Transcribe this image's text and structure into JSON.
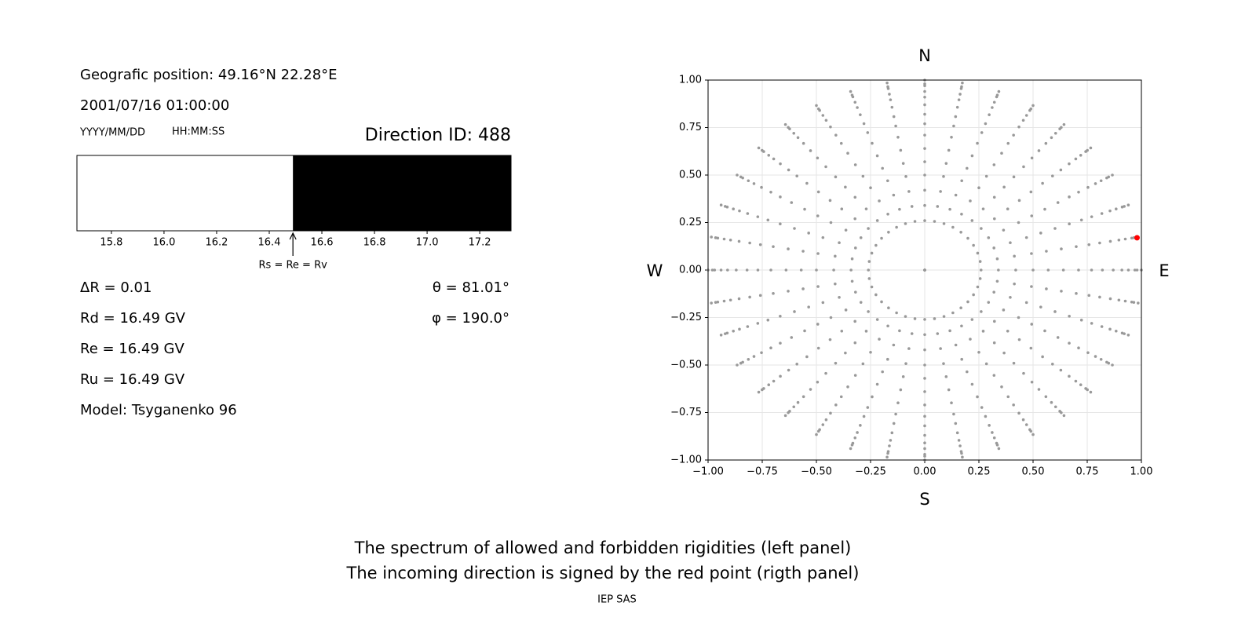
{
  "info": {
    "position": "Geografic position: 49.16°N 22.28°E",
    "datetime": "2001/07/16 01:00:00",
    "date_format": "YYYY/MM/DD",
    "time_format": "HH:MM:SS",
    "direction": "Direction ID: 488",
    "delta_r": "ΔR = 0.01",
    "theta": "θ = 81.01°",
    "phi": "φ = 190.0°",
    "rd": "Rd = 16.49 GV",
    "re": "Re = 16.49 GV",
    "ru": "Ru = 16.49 GV",
    "model": "Model: Tsyganenko 96"
  },
  "chart_data": [
    {
      "type": "spectrum",
      "xlim": [
        15.669,
        17.319
      ],
      "boundary": 16.49,
      "boundary_label": "Rs = Re = Rv",
      "allowed_color": "#ffffff",
      "forbidden_color": "#000000",
      "xticks": [
        15.8,
        {
          "value": 16,
          "label": "16.0"
        },
        16.2,
        16.4,
        16.6,
        16.8,
        {
          "value": 17,
          "label": "17.0"
        },
        17.2
      ]
    },
    {
      "type": "polar-scatter",
      "radii": [
        0,
        0.26,
        0.34,
        0.42,
        0.5,
        0.57,
        0.64,
        0.71,
        0.77,
        0.82,
        0.87,
        0.91,
        0.94,
        0.97,
        0.98,
        1.0
      ],
      "azimuths": [
        0,
        10,
        20,
        30,
        40,
        50,
        60,
        70,
        80,
        90,
        100,
        110,
        120,
        130,
        140,
        150,
        160,
        170,
        180,
        190,
        200,
        210,
        220,
        230,
        240,
        250,
        260,
        270,
        280,
        290,
        300,
        310,
        320,
        330,
        340,
        350
      ],
      "color": "#999999",
      "highlight": {
        "x": [
          0.98
        ],
        "y": [
          0.17
        ],
        "color": "#ff0000"
      },
      "xlim": [
        -1,
        1
      ],
      "ylim": [
        -1,
        1
      ],
      "xticks": [
        {
          "value": -1,
          "label": "−1.00"
        },
        {
          "value": -0.75,
          "label": "−0.75"
        },
        {
          "value": -0.5,
          "label": "−0.50"
        },
        {
          "value": -0.25,
          "label": "−0.25"
        },
        {
          "value": 0,
          "label": "0.00"
        },
        {
          "value": 0.25,
          "label": "0.25"
        },
        {
          "value": 0.5,
          "label": "0.50"
        },
        {
          "value": 0.75,
          "label": "0.75"
        },
        {
          "value": 1,
          "label": "1.00"
        }
      ],
      "yticks": [
        {
          "value": -1,
          "label": "−1.00"
        },
        {
          "value": -0.75,
          "label": "−0.75"
        },
        {
          "value": -0.5,
          "label": "−0.50"
        },
        {
          "value": -0.25,
          "label": "−0.25"
        },
        {
          "value": 0,
          "label": "0.00"
        },
        {
          "value": 0.25,
          "label": "0.25"
        },
        {
          "value": 0.5,
          "label": "0.50"
        },
        {
          "value": 0.75,
          "label": "0.75"
        },
        {
          "value": 1,
          "label": "1.00"
        }
      ],
      "grid": true,
      "compass": {
        "north": "N",
        "south": "S",
        "west": "W",
        "east": "E"
      }
    }
  ],
  "footer": {
    "line1": "The spectrum of allowed and forbidden rigidities (left panel)",
    "line2": "The incoming direction is signed by the red point (rigth panel)",
    "credit": "IEP SAS"
  }
}
